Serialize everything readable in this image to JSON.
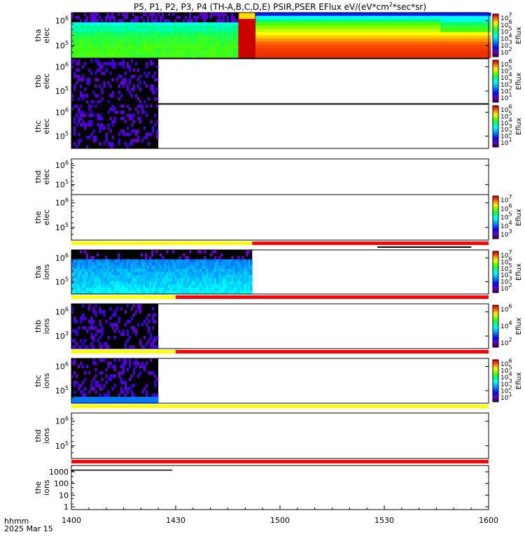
{
  "chart_data": {
    "type": "heatmap",
    "title": "P5, P1, P2, P3, P4 (TH-A,B,C,D,E) PSIR,PSER EFlux eV/(eV*cm^2*sec*sr)",
    "title_main": "P5, P1, P2, P3, P4 (TH-A,B,C,D,E) PSIR,PSER EFlux eV/(eV*cm",
    "title_sup": "2",
    "title_tail": "*sec*sr)",
    "x_axis": {
      "ticks": [
        "1400",
        "1430",
        "1500",
        "1530",
        "1600"
      ],
      "range": [
        "14:00",
        "16:00"
      ],
      "footer_line1": "hhmm",
      "footer_line2": "2025 Mar 15"
    },
    "colorbar_label": "Eflux",
    "panels": [
      {
        "id": "tha-elec",
        "label_top": "tha",
        "label_bottom": "elec",
        "y_ticks": [
          {
            "base": "10",
            "exp": "6",
            "value": 1000000
          },
          {
            "base": "10",
            "exp": "5",
            "value": 100000
          }
        ],
        "data_end_time": "16:00",
        "data_note": "low flux (violet, ~10^1-10^3) above ~3e6 eV until ~14:45, then bright high flux after ~14:50",
        "colorbar_ticks": [
          {
            "base": "10",
            "exp": "7"
          },
          {
            "base": "10",
            "exp": "6"
          },
          {
            "base": "10",
            "exp": "5"
          },
          {
            "base": "10",
            "exp": "4"
          },
          {
            "base": "10",
            "exp": "3"
          },
          {
            "base": "10",
            "exp": "2"
          }
        ]
      },
      {
        "id": "thb-elec",
        "label_top": "thb",
        "label_bottom": "elec",
        "y_ticks": [
          {
            "base": "10",
            "exp": "6",
            "value": 1000000
          },
          {
            "base": "10",
            "exp": "5",
            "value": 100000
          }
        ],
        "data_end_time": "14:25",
        "colorbar_ticks": [
          {
            "base": "10",
            "exp": "6"
          },
          {
            "base": "10",
            "exp": "5"
          },
          {
            "base": "10",
            "exp": "4"
          },
          {
            "base": "10",
            "exp": "3"
          },
          {
            "base": "10",
            "exp": "2"
          },
          {
            "base": "10",
            "exp": "1"
          }
        ]
      },
      {
        "id": "thc-elec",
        "label_top": "thc",
        "label_bottom": "elec",
        "y_ticks": [
          {
            "base": "10",
            "exp": "6",
            "value": 1000000
          },
          {
            "base": "10",
            "exp": "5",
            "value": 100000
          }
        ],
        "data_end_time": "14:25",
        "colorbar_ticks": [
          {
            "base": "10",
            "exp": "6"
          },
          {
            "base": "10",
            "exp": "5"
          },
          {
            "base": "10",
            "exp": "4"
          },
          {
            "base": "10",
            "exp": "3"
          },
          {
            "base": "10",
            "exp": "2"
          },
          {
            "base": "10",
            "exp": "1"
          }
        ]
      },
      {
        "id": "thd-elec",
        "label_top": "thd",
        "label_bottom": "elec",
        "y_ticks": [
          {
            "base": "10",
            "exp": "6",
            "value": 1000000
          },
          {
            "base": "10",
            "exp": "5",
            "value": 100000
          }
        ],
        "data_end_time": null,
        "colorbar_ticks": []
      },
      {
        "id": "the-elec",
        "label_top": "the",
        "label_bottom": "elec",
        "y_ticks": [
          {
            "base": "10",
            "exp": "6",
            "value": 1000000
          },
          {
            "base": "10",
            "exp": "5",
            "value": 100000
          }
        ],
        "data_end_time": null,
        "colorbar_ticks": [
          {
            "base": "10",
            "exp": "7"
          },
          {
            "base": "10",
            "exp": "6"
          },
          {
            "base": "10",
            "exp": "5"
          },
          {
            "base": "10",
            "exp": "4"
          },
          {
            "base": "10",
            "exp": "3"
          }
        ]
      },
      {
        "id": "tha-ions",
        "label_top": "tha",
        "label_bottom": "ions",
        "y_ticks": [
          {
            "base": "10",
            "exp": "6",
            "value": 1000000
          },
          {
            "base": "10",
            "exp": "5",
            "value": 100000
          }
        ],
        "data_end_time": "14:52",
        "status_bar": [
          {
            "from": "14:00",
            "to": "14:52",
            "color": "#ffff00"
          },
          {
            "from": "14:52",
            "to": "16:00",
            "color": "#ff0000"
          }
        ],
        "status_mark": {
          "from": "15:28",
          "to": "15:55",
          "color": "#000000"
        },
        "colorbar_ticks": [
          {
            "base": "10",
            "exp": "7"
          },
          {
            "base": "10",
            "exp": "6"
          },
          {
            "base": "10",
            "exp": "5"
          },
          {
            "base": "10",
            "exp": "4"
          },
          {
            "base": "10",
            "exp": "3"
          },
          {
            "base": "10",
            "exp": "2"
          }
        ]
      },
      {
        "id": "thb-ions",
        "label_top": "thb",
        "label_bottom": "ions",
        "y_ticks": [
          {
            "base": "10",
            "exp": "6",
            "value": 1000000
          },
          {
            "base": "10",
            "exp": "3",
            "value": 1000
          }
        ],
        "data_end_time": "14:25",
        "status_bar": [
          {
            "from": "14:00",
            "to": "14:30",
            "color": "#ffff00"
          },
          {
            "from": "14:30",
            "to": "16:00",
            "color": "#ff0000"
          }
        ],
        "colorbar_ticks": [
          {
            "base": "10",
            "exp": "6"
          },
          {
            "base": "10",
            "exp": "4"
          },
          {
            "base": "10",
            "exp": "2"
          }
        ]
      },
      {
        "id": "thc-ions",
        "label_top": "thc",
        "label_bottom": "ions",
        "y_ticks": [
          {
            "base": "10",
            "exp": "6",
            "value": 1000000
          },
          {
            "base": "10",
            "exp": "5",
            "value": 100000
          }
        ],
        "data_end_time": "14:25",
        "status_bar": [
          {
            "from": "14:00",
            "to": "14:30",
            "color": "#ffff00"
          },
          {
            "from": "14:30",
            "to": "16:00",
            "color": "#ff0000"
          }
        ],
        "colorbar_ticks": [
          {
            "base": "10",
            "exp": "6"
          },
          {
            "base": "10",
            "exp": "5"
          },
          {
            "base": "10",
            "exp": "4"
          },
          {
            "base": "10",
            "exp": "3"
          },
          {
            "base": "10",
            "exp": "2"
          },
          {
            "base": "10",
            "exp": "1"
          }
        ]
      },
      {
        "id": "thd-ions",
        "label_top": "thd",
        "label_bottom": "ions",
        "y_ticks": [
          {
            "base": "10",
            "exp": "6",
            "value": 1000000
          },
          {
            "base": "10",
            "exp": "5",
            "value": 100000
          }
        ],
        "data_end_time": null,
        "status_bar": [
          {
            "from": "14:00",
            "to": "16:00",
            "color": "#ffff00"
          }
        ],
        "colorbar_ticks": []
      },
      {
        "id": "the-ions",
        "label_top": "the",
        "label_bottom": "ions",
        "y_ticks": [
          {
            "text": "1000",
            "value": 1000
          },
          {
            "text": "100",
            "value": 100
          },
          {
            "text": "10",
            "value": 10
          },
          {
            "text": "1",
            "value": 1
          }
        ],
        "data_end_time": null,
        "status_bar": [
          {
            "from": "14:00",
            "to": "16:00",
            "color": "#ff0000"
          }
        ],
        "line_trace": {
          "from": "14:00",
          "to": "14:29",
          "value": 1400
        },
        "colorbar_ticks": []
      }
    ]
  }
}
